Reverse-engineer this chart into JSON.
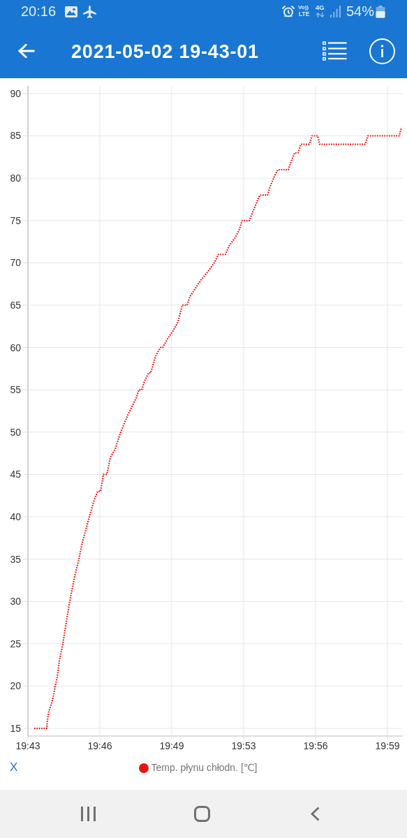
{
  "chart_data": {
    "type": "line",
    "title": "2021-05-02 19-43-01",
    "x": [
      19.7213,
      19.7306,
      19.7312,
      19.7322,
      19.7343,
      19.7358,
      19.7369,
      19.7384,
      19.74,
      19.7426,
      19.7446,
      19.7477,
      19.7514,
      19.7545,
      19.7571,
      19.7622,
      19.7659,
      19.7684,
      19.7705,
      19.7716,
      19.7726,
      19.7752,
      19.7778,
      19.7814,
      19.7855,
      19.7907,
      19.7969,
      19.799,
      19.8011,
      19.8031,
      19.8062,
      19.8078,
      19.8114,
      19.815,
      19.8166,
      19.8202,
      19.8244,
      19.828,
      19.8295,
      19.8311,
      19.8347,
      19.8368,
      19.8409,
      19.8451,
      19.8503,
      19.8549,
      19.858,
      19.8632,
      19.8658,
      19.8705,
      19.8736,
      19.8756,
      19.8808,
      19.8834,
      19.886,
      19.8886,
      19.8943,
      19.8963,
      19.8989,
      19.902,
      19.9098,
      19.9119,
      19.9145,
      19.9171,
      19.9191,
      19.9253,
      19.9274,
      19.9316,
      19.9331,
      19.9668,
      19.9688,
      19.9921,
      19.9937
    ],
    "series": [
      {
        "name": "Temp. płynu chłodn. [℃]",
        "color": "#ee1111",
        "values": [
          15,
          15,
          16,
          17,
          18,
          19,
          20,
          21,
          23,
          25,
          27,
          30,
          33,
          35,
          37,
          40,
          42,
          43,
          43,
          44,
          45,
          45,
          47,
          48,
          50,
          52,
          54,
          55,
          55,
          56,
          57,
          57,
          59,
          60,
          60,
          61,
          62,
          63,
          64,
          65,
          65,
          66,
          67,
          68,
          69,
          70,
          71,
          71,
          72,
          73,
          74,
          75,
          75,
          76,
          77,
          78,
          78,
          79,
          80,
          81,
          81,
          82,
          83,
          83,
          84,
          84,
          85,
          85,
          84,
          84,
          85,
          85,
          86
        ]
      }
    ],
    "xlim": [
      19.7167,
      19.9947
    ],
    "xticks": [
      {
        "value": 19.7167,
        "label": "19:43"
      },
      {
        "value": 19.77,
        "label": "19:46"
      },
      {
        "value": 19.8233,
        "label": "19:49"
      },
      {
        "value": 19.8767,
        "label": "19:53"
      },
      {
        "value": 19.93,
        "label": "19:56"
      },
      {
        "value": 19.9833,
        "label": "19:59"
      }
    ],
    "ylim": [
      14.1,
      90.9
    ],
    "yticks": [
      15,
      20,
      25,
      30,
      35,
      40,
      45,
      50,
      55,
      60,
      65,
      70,
      75,
      80,
      85,
      90
    ],
    "grid": true,
    "legend": "bottom",
    "line_style": "dotted",
    "annotations": [
      "20:16",
      "Vo))",
      "LTE",
      "4G",
      "54%",
      "X"
    ]
  }
}
